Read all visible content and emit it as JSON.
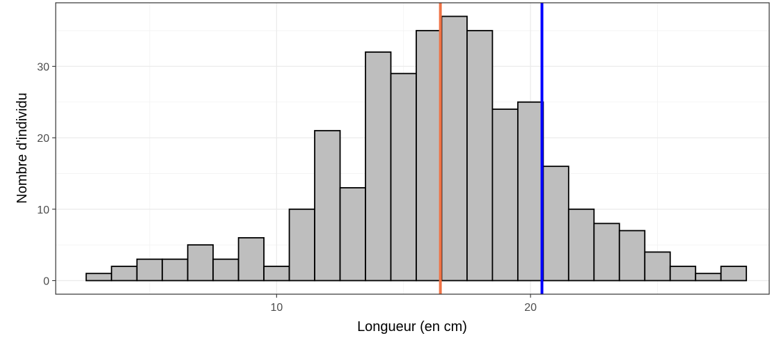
{
  "chart_data": {
    "type": "bar",
    "xlabel": "Longueur (en cm)",
    "ylabel": "Nombre d'individu",
    "x_ticks": [
      10,
      20
    ],
    "y_ticks": [
      0,
      10,
      20,
      30
    ],
    "xlim": [
      1.3,
      29.4
    ],
    "ylim": [
      -1.9,
      38.9
    ],
    "grid": true,
    "bins": [
      {
        "x0": 2.5,
        "x1": 3.5,
        "count": 1
      },
      {
        "x0": 3.5,
        "x1": 4.5,
        "count": 2
      },
      {
        "x0": 4.5,
        "x1": 5.5,
        "count": 3
      },
      {
        "x0": 5.5,
        "x1": 6.5,
        "count": 3
      },
      {
        "x0": 6.5,
        "x1": 7.5,
        "count": 5
      },
      {
        "x0": 7.5,
        "x1": 8.5,
        "count": 3
      },
      {
        "x0": 8.5,
        "x1": 9.5,
        "count": 6
      },
      {
        "x0": 9.5,
        "x1": 10.5,
        "count": 2
      },
      {
        "x0": 10.5,
        "x1": 11.5,
        "count": 10
      },
      {
        "x0": 11.5,
        "x1": 12.5,
        "count": 21
      },
      {
        "x0": 12.5,
        "x1": 13.5,
        "count": 13
      },
      {
        "x0": 13.5,
        "x1": 14.5,
        "count": 32
      },
      {
        "x0": 14.5,
        "x1": 15.5,
        "count": 29
      },
      {
        "x0": 15.5,
        "x1": 16.5,
        "count": 35
      },
      {
        "x0": 16.5,
        "x1": 17.5,
        "count": 37
      },
      {
        "x0": 17.5,
        "x1": 18.5,
        "count": 35
      },
      {
        "x0": 18.5,
        "x1": 19.5,
        "count": 24
      },
      {
        "x0": 19.5,
        "x1": 20.5,
        "count": 25
      },
      {
        "x0": 20.5,
        "x1": 21.5,
        "count": 16
      },
      {
        "x0": 21.5,
        "x1": 22.5,
        "count": 10
      },
      {
        "x0": 22.5,
        "x1": 23.5,
        "count": 8
      },
      {
        "x0": 23.5,
        "x1": 24.5,
        "count": 7
      },
      {
        "x0": 24.5,
        "x1": 25.5,
        "count": 4
      },
      {
        "x0": 25.5,
        "x1": 26.5,
        "count": 2
      },
      {
        "x0": 26.5,
        "x1": 27.5,
        "count": 1
      },
      {
        "x0": 27.5,
        "x1": 28.5,
        "count": 2
      }
    ],
    "vlines": [
      {
        "x": 16.45,
        "color": "#f07346"
      },
      {
        "x": 20.45,
        "color": "#0000ff"
      }
    ],
    "colors": {
      "bar_fill": "#bebebe",
      "bar_stroke": "#000000",
      "grid_major": "#ebebeb",
      "grid_minor": "#f2f2f2",
      "panel_border": "#333333",
      "tick_text": "#4d4d4d"
    }
  }
}
